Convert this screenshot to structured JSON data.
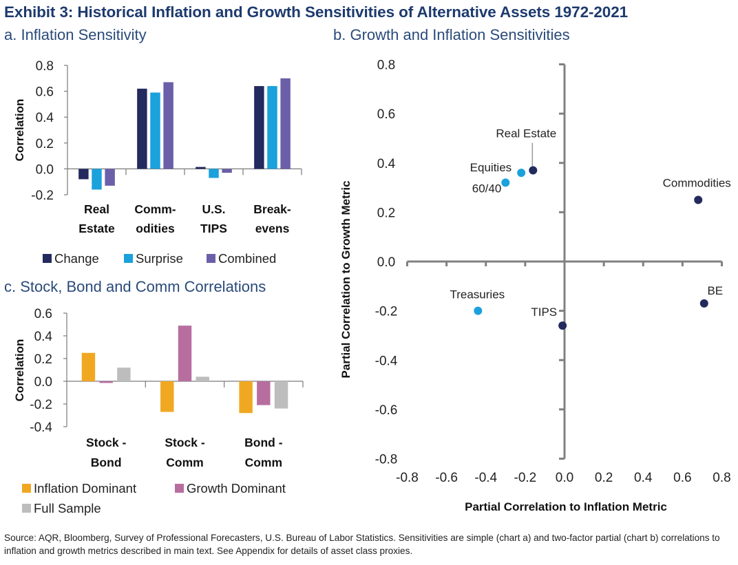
{
  "title": "Exhibit 3: Historical Inflation and Growth Sensitivities of Alternative Assets 1972-2021",
  "source": "Source: AQR, Bloomberg, Survey of Professional Forecasters, U.S. Bureau of Labor Statistics. Sensitivities are simple (chart a) and two-factor partial (chart b) correlations to inflation and growth metrics described in main text. See Appendix for details of asset class proxies.",
  "chart_data": [
    {
      "id": "a",
      "type": "bar",
      "title": "a. Inflation Sensitivity",
      "xlabel": "",
      "ylabel": "Correlation",
      "ylim": [
        -0.2,
        0.8
      ],
      "yticks": [
        "0.8",
        "0.6",
        "0.4",
        "0.2",
        "0.0",
        "-0.2"
      ],
      "ytick_values": [
        0.8,
        0.6,
        0.4,
        0.2,
        0.0,
        -0.2
      ],
      "categories": [
        [
          "Real",
          "Estate"
        ],
        [
          "Comm-",
          "odities"
        ],
        [
          "U.S.",
          "TIPS"
        ],
        [
          "Break-",
          "evens"
        ]
      ],
      "series": [
        {
          "name": "Change",
          "color": "#232a5e",
          "values": [
            -0.08,
            0.62,
            0.015,
            0.64
          ]
        },
        {
          "name": "Surprise",
          "color": "#1ba1dc",
          "values": [
            -0.16,
            0.59,
            -0.07,
            0.64
          ]
        },
        {
          "name": "Combined",
          "color": "#6a5fa8",
          "values": [
            -0.13,
            0.67,
            -0.03,
            0.7
          ]
        }
      ],
      "grid": false,
      "legend_position": "bottom"
    },
    {
      "id": "c",
      "type": "bar",
      "title": "c. Stock, Bond and Comm Correlations",
      "xlabel": "",
      "ylabel": "Correlation",
      "ylim": [
        -0.4,
        0.6
      ],
      "yticks": [
        "0.6",
        "0.4",
        "0.2",
        "0.0",
        "-0.2",
        "-0.4"
      ],
      "ytick_values": [
        0.6,
        0.4,
        0.2,
        0.0,
        -0.2,
        -0.4
      ],
      "categories": [
        [
          "Stock -",
          "Bond"
        ],
        [
          "Stock -",
          "Comm"
        ],
        [
          "Bond -",
          "Comm"
        ]
      ],
      "series": [
        {
          "name": "Inflation Dominant",
          "color": "#f0a822",
          "values": [
            0.25,
            -0.27,
            -0.28
          ]
        },
        {
          "name": "Growth Dominant",
          "color": "#b76e9f",
          "values": [
            -0.015,
            0.49,
            -0.21
          ]
        },
        {
          "name": "Full Sample",
          "color": "#bdbdbd",
          "values": [
            0.12,
            0.04,
            -0.24
          ]
        }
      ],
      "grid": false,
      "legend_position": "bottom"
    },
    {
      "id": "b",
      "type": "scatter",
      "title": "b. Growth and Inflation Sensitivities",
      "xlabel": "Partial Correlation to Inflation Metric",
      "ylabel": "Partial Correlation to Growth Metric",
      "xlim": [
        -0.8,
        0.8
      ],
      "ylim": [
        -0.8,
        0.8
      ],
      "xticks": [
        "-0.8",
        "-0.6",
        "-0.4",
        "-0.2",
        "0.0",
        "0.2",
        "0.4",
        "0.6",
        "0.8"
      ],
      "xtick_values": [
        -0.8,
        -0.6,
        -0.4,
        -0.2,
        0.0,
        0.2,
        0.4,
        0.6,
        0.8
      ],
      "yticks": [
        "0.8",
        "0.6",
        "0.4",
        "0.2",
        "0.0",
        "-0.2",
        "-0.4",
        "-0.6",
        "-0.8"
      ],
      "ytick_values": [
        0.8,
        0.6,
        0.4,
        0.2,
        0.0,
        -0.2,
        -0.4,
        -0.6,
        -0.8
      ],
      "points": [
        {
          "label": "Real Estate",
          "x": -0.16,
          "y": 0.37,
          "color": "#232a5e",
          "label_pos": "above-leader"
        },
        {
          "label": "Equities",
          "x": -0.22,
          "y": 0.36,
          "color": "#1ba1dc",
          "label_pos": "left"
        },
        {
          "label": "60/40",
          "x": -0.3,
          "y": 0.32,
          "color": "#1ba1dc",
          "label_pos": "below-left"
        },
        {
          "label": "Commodities",
          "x": 0.68,
          "y": 0.25,
          "color": "#232a5e",
          "label_pos": "above"
        },
        {
          "label": "Treasuries",
          "x": -0.44,
          "y": -0.2,
          "color": "#1ba1dc",
          "label_pos": "above"
        },
        {
          "label": "TIPS",
          "x": -0.01,
          "y": -0.26,
          "color": "#232a5e",
          "label_pos": "above-left"
        },
        {
          "label": "BE",
          "x": 0.71,
          "y": -0.17,
          "color": "#232a5e",
          "label_pos": "above"
        }
      ],
      "grid": false,
      "legend_position": "none"
    }
  ]
}
